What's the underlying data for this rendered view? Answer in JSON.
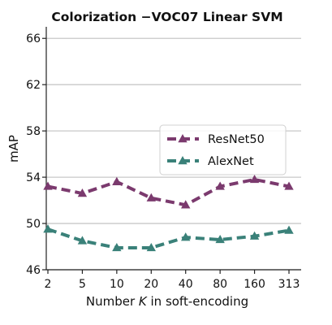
{
  "chart_data": {
    "type": "line",
    "title": "Colorization  −VOC07 Linear SVM",
    "xlabel_pre": "Number ",
    "xlabel_var": "K",
    "xlabel_post": " in soft-encoding",
    "ylabel": "mAP",
    "categories": [
      "2",
      "5",
      "10",
      "20",
      "40",
      "80",
      "160",
      "313"
    ],
    "ylim": [
      46,
      67
    ],
    "yticks": [
      46,
      50,
      54,
      58,
      62,
      66
    ],
    "grid": "horizontal",
    "legend_position": "center-right",
    "marker": "triangle",
    "line_style": "dashed",
    "series": [
      {
        "name": "ResNet50",
        "color": "#7b3a6e",
        "values": [
          53.2,
          52.6,
          53.6,
          52.2,
          51.6,
          53.2,
          53.8,
          53.2
        ]
      },
      {
        "name": "AlexNet",
        "color": "#3a8179",
        "values": [
          49.5,
          48.5,
          47.9,
          47.9,
          48.8,
          48.6,
          48.9,
          49.4
        ]
      }
    ]
  }
}
